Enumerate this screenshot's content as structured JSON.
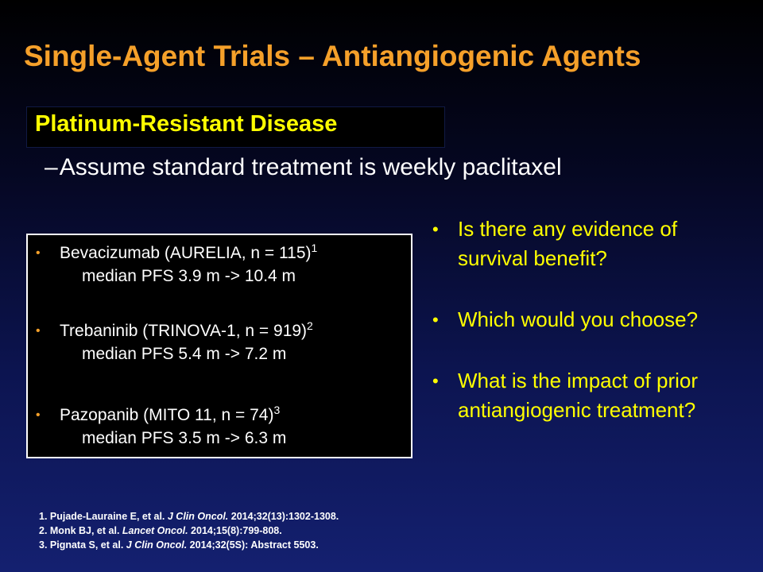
{
  "title": "Single-Agent Trials – Antiangiogenic Agents",
  "subtitle": "Platinum-Resistant Disease",
  "assumption": {
    "dash": "–",
    "text": "Assume standard treatment is weekly paclitaxel"
  },
  "trials": [
    {
      "bullet": "•",
      "name": "Bevacizumab (AURELIA, n = 115)",
      "ref": "1",
      "result": "median PFS 3.9 m -> 10.4 m"
    },
    {
      "bullet": "•",
      "name": "Trebaninib (TRINOVA-1, n = 919)",
      "ref": "2",
      "result": "median PFS 5.4 m -> 7.2 m"
    },
    {
      "bullet": "•",
      "name": "Pazopanib (MITO 11, n = 74)",
      "ref": "3",
      "result": "median PFS 3.5 m -> 6.3 m"
    }
  ],
  "questions": [
    {
      "bullet": "•",
      "text": "Is there any evidence of survival benefit?"
    },
    {
      "bullet": "•",
      "text": "Which would you choose?"
    },
    {
      "bullet": "•",
      "text": "What is the impact of prior antiangiogenic treatment?"
    }
  ],
  "references": [
    {
      "prefix": "1. Pujade-Lauraine E, et al.",
      "journal": "J Clin Oncol.",
      "details": "2014;32(13):1302-1308."
    },
    {
      "prefix": "2. Monk BJ, et al.",
      "journal": "Lancet Oncol.",
      "details": "2014;15(8):799-808."
    },
    {
      "prefix": "3. Pignata S, et al.",
      "journal": "J Clin Oncol.",
      "details": "2014;32(5S): Abstract 5503."
    }
  ],
  "colors": {
    "title": "#f5a02a",
    "subtitle": "#ffff00",
    "questions": "#ffff00",
    "bullet_orange": "#f5a02a"
  }
}
